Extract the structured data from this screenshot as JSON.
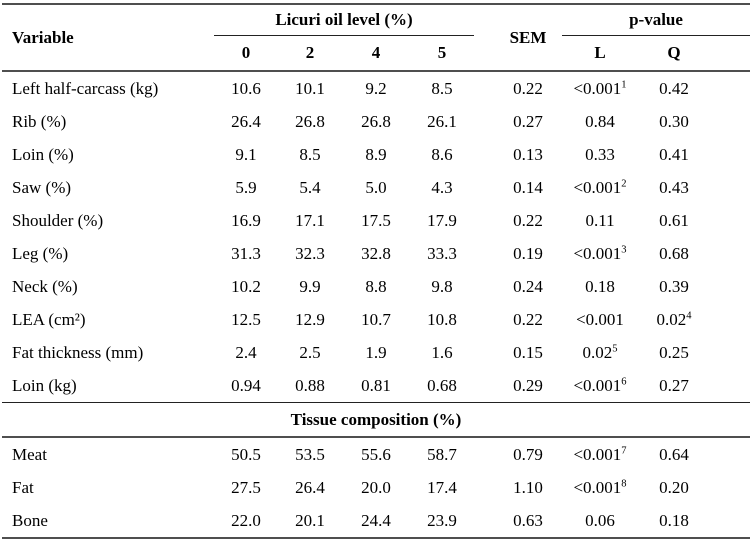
{
  "table": {
    "header": {
      "variable_label": "Variable",
      "group1_label": "Licuri oil level (%)",
      "group1_levels": [
        "0",
        "2",
        "4",
        "5"
      ],
      "sem_label": "SEM",
      "group2_label": "p-value",
      "group2_cols": [
        "L",
        "Q"
      ]
    },
    "sections": [
      {
        "title": null,
        "rows": [
          {
            "variable": "Left half-carcass (kg)",
            "values": [
              "10.6",
              "10.1",
              "9.2",
              "8.5",
              "0.22",
              "<0.001^{1}",
              "0.42"
            ]
          },
          {
            "variable": "Rib (%)",
            "values": [
              "26.4",
              "26.8",
              "26.8",
              "26.1",
              "0.27",
              "0.84",
              "0.30"
            ]
          },
          {
            "variable": "Loin (%)",
            "values": [
              "9.1",
              "8.5",
              "8.9",
              "8.6",
              "0.13",
              "0.33",
              "0.41"
            ]
          },
          {
            "variable": "Saw (%)",
            "values": [
              "5.9",
              "5.4",
              "5.0",
              "4.3",
              "0.14",
              "<0.001^{2}",
              "0.43"
            ]
          },
          {
            "variable": "Shoulder (%)",
            "values": [
              "16.9",
              "17.1",
              "17.5",
              "17.9",
              "0.22",
              "0.11",
              "0.61"
            ]
          },
          {
            "variable": "Leg (%)",
            "values": [
              "31.3",
              "32.3",
              "32.8",
              "33.3",
              "0.19",
              "<0.001^{3}",
              "0.68"
            ]
          },
          {
            "variable": "Neck (%)",
            "values": [
              "10.2",
              "9.9",
              "8.8",
              "9.8",
              "0.24",
              "0.18",
              "0.39"
            ]
          },
          {
            "variable": "LEA (cm²)",
            "values": [
              "12.5",
              "12.9",
              "10.7",
              "10.8",
              "0.22",
              "<0.001",
              "0.02^{4}"
            ]
          },
          {
            "variable": "Fat thickness (mm)",
            "values": [
              "2.4",
              "2.5",
              "1.9",
              "1.6",
              "0.15",
              "0.02^{5}",
              "0.25"
            ]
          },
          {
            "variable": "Loin (kg)",
            "values": [
              "0.94",
              "0.88",
              "0.81",
              "0.68",
              "0.29",
              "<0.001^{6}",
              "0.27"
            ]
          }
        ]
      },
      {
        "title": "Tissue composition (%)",
        "rows": [
          {
            "variable": "Meat",
            "values": [
              "50.5",
              "53.5",
              "55.6",
              "58.7",
              "0.79",
              "<0.001^{7}",
              "0.64"
            ]
          },
          {
            "variable": "Fat",
            "values": [
              "27.5",
              "26.4",
              "20.0",
              "17.4",
              "1.10",
              "<0.001^{8}",
              "0.20"
            ]
          },
          {
            "variable": "Bone",
            "values": [
              "22.0",
              "20.1",
              "24.4",
              "23.9",
              "0.63",
              "0.06",
              "0.18"
            ]
          }
        ]
      }
    ],
    "colors": {
      "rule": "#4f4f4f",
      "rule_dark": "#222222",
      "text": "#000000",
      "background": "#ffffff"
    }
  }
}
